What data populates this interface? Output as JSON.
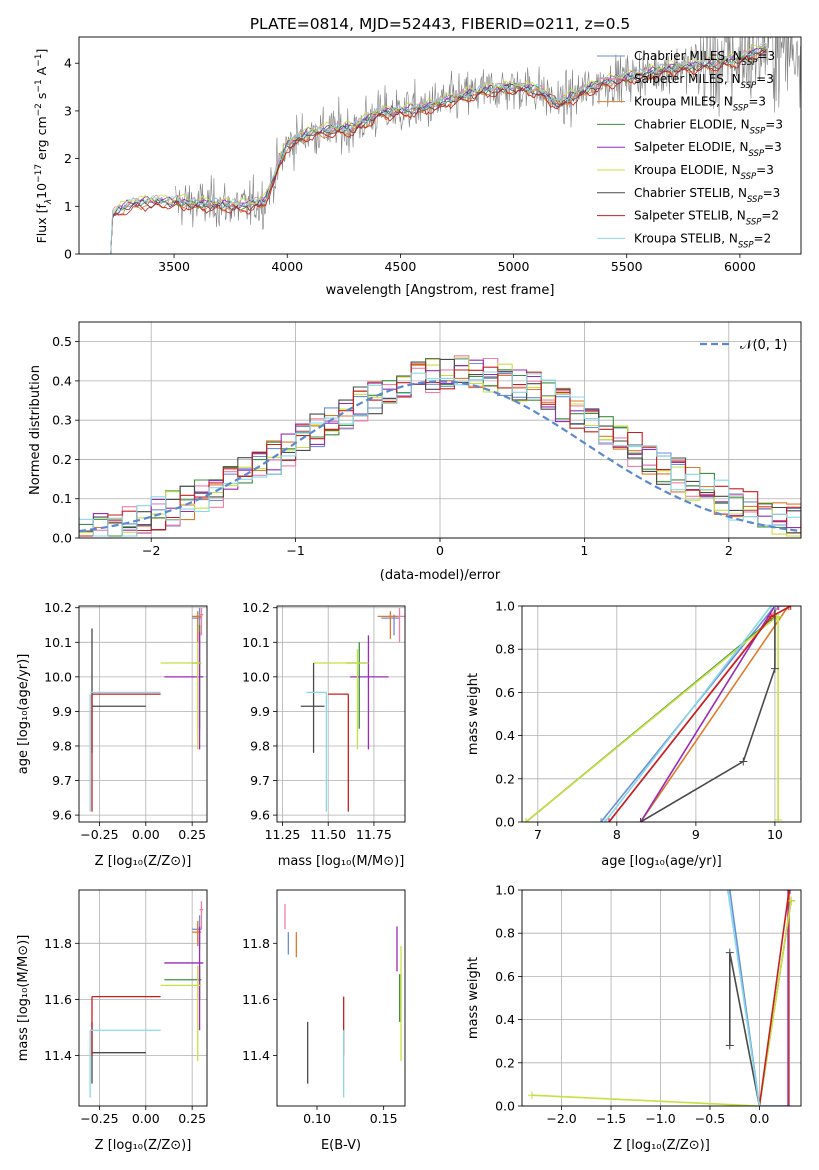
{
  "colors": {
    "Chabrier MILES": "#6a8fd8",
    "Salpeter MILES": "#f07fa8",
    "Kroupa MILES": "#e07a2a",
    "Chabrier ELODIE": "#3f8f3f",
    "Salpeter ELODIE": "#9a2ab8",
    "Kroupa ELODIE": "#c8e040",
    "Chabrier STELIB": "#4a4a4a",
    "Salpeter STELIB": "#c81e1e",
    "Kroupa STELIB": "#88d8e8",
    "normal": "#5b88d0",
    "grid": "#b0b0b0",
    "data_spectrum": "#7f7f7f"
  },
  "chart_data": [
    {
      "id": "spectrum",
      "type": "line",
      "title": "PLATE=0814, MJD=52443, FIBERID=0211, z=0.5",
      "xlabel": "wavelength [Angstrom, rest frame]",
      "ylabel": "Flux [f$_\\lambda$10$^{-17}$ erg cm$^{-2}$ s$^{-1}$ A$^{-1}$]",
      "ylabel_parts": [
        "Flux [f",
        "λ",
        "10",
        "−17",
        " erg cm",
        "−2",
        " s",
        "−1",
        " A",
        "−1",
        "]"
      ],
      "xlim": [
        3080,
        6270
      ],
      "ylim": [
        0,
        4.55
      ],
      "xticks": [
        3500,
        4000,
        4500,
        5000,
        5500,
        6000
      ],
      "yticks": [
        0,
        1,
        2,
        3,
        4
      ],
      "grid": false,
      "legend_position": "top-right",
      "legend": [
        {
          "name": "Chabrier MILES",
          "nssp": "3"
        },
        {
          "name": "Salpeter MILES",
          "nssp": "3"
        },
        {
          "name": "Kroupa MILES",
          "nssp": "3"
        },
        {
          "name": "Chabrier ELODIE",
          "nssp": "3"
        },
        {
          "name": "Salpeter ELODIE",
          "nssp": "3"
        },
        {
          "name": "Kroupa ELODIE",
          "nssp": "3"
        },
        {
          "name": "Chabrier STELIB",
          "nssp": "3"
        },
        {
          "name": "Salpeter STELIB",
          "nssp": "2"
        },
        {
          "name": "Kroupa STELIB",
          "nssp": "2"
        }
      ],
      "nssp_label": [
        "N",
        "SSP",
        "="
      ],
      "continuum": {
        "x": [
          3220,
          3300,
          3400,
          3500,
          3600,
          3700,
          3800,
          3900,
          3950,
          4000,
          4100,
          4200,
          4300,
          4400,
          4500,
          4600,
          4700,
          4800,
          4900,
          5000,
          5100,
          5200,
          5300,
          5400,
          5500,
          5600,
          5700,
          5800,
          5900,
          6000,
          6100
        ],
        "y": [
          0.8,
          1.05,
          1.1,
          1.1,
          1.05,
          1.05,
          1.0,
          1.1,
          1.7,
          2.3,
          2.55,
          2.6,
          2.65,
          2.95,
          3.0,
          3.05,
          3.2,
          3.35,
          3.45,
          3.5,
          3.45,
          3.15,
          3.4,
          3.6,
          3.7,
          3.8,
          3.9,
          3.95,
          4.0,
          4.1,
          4.3
        ]
      },
      "model_x_range": [
        3220,
        6120
      ],
      "data_x_range": [
        3505,
        6270
      ],
      "data_noise": 0.35
    },
    {
      "id": "residuals",
      "type": "step",
      "xlabel": "(data-model)/error",
      "ylabel": "Normed distribution",
      "xlim": [
        -2.5,
        2.5
      ],
      "ylim": [
        0,
        0.55
      ],
      "xticks": [
        -2,
        -1,
        0,
        1,
        2
      ],
      "yticks": [
        0,
        0.1,
        0.2,
        0.3,
        0.4,
        0.5
      ],
      "grid": true,
      "legend_position": "top-right",
      "legend": [
        "𝒩(0, 1)"
      ],
      "bin_width": 0.1,
      "series_names": [
        "Chabrier MILES",
        "Salpeter MILES",
        "Kroupa MILES",
        "Chabrier ELODIE",
        "Salpeter ELODIE",
        "Kroupa ELODIE",
        "Chabrier STELIB",
        "Salpeter STELIB",
        "Kroupa STELIB"
      ],
      "normal_curve": {
        "mean": 0,
        "sigma": 1
      }
    },
    {
      "id": "age_vs_Z",
      "type": "errorbar",
      "xlabel": "Z [log₁₀(Z/Z⊙)]",
      "ylabel": "age  [log₁₀(age/yr)]",
      "xlim": [
        -0.36,
        0.33
      ],
      "ylim": [
        9.58,
        10.205
      ],
      "xticks": [
        -0.25,
        0.0,
        0.25
      ],
      "yticks": [
        9.6,
        9.7,
        9.8,
        9.9,
        10.0,
        10.1,
        10.2
      ],
      "grid": true,
      "points": [
        {
          "series": "Chabrier MILES",
          "x": 0.29,
          "y": 10.17,
          "xlo": 0.25,
          "xhi": 0.3,
          "ylo": 10.13,
          "yhi": 10.2
        },
        {
          "series": "Salpeter MILES",
          "x": 0.3,
          "y": 10.18,
          "xlo": 0.29,
          "xhi": 0.31,
          "ylo": 10.12,
          "yhi": 10.2
        },
        {
          "series": "Kroupa MILES",
          "x": 0.28,
          "y": 10.175,
          "xlo": 0.25,
          "xhi": 0.3,
          "ylo": 10.1,
          "yhi": 10.19
        },
        {
          "series": "Chabrier ELODIE",
          "x": 0.29,
          "y": 10.04,
          "xlo": 0.25,
          "xhi": 0.3,
          "ylo": 9.85,
          "yhi": 10.15
        },
        {
          "series": "Salpeter ELODIE",
          "x": 0.29,
          "y": 10.0,
          "xlo": 0.1,
          "xhi": 0.31,
          "ylo": 9.79,
          "yhi": 10.13
        },
        {
          "series": "Kroupa ELODIE",
          "x": 0.28,
          "y": 10.04,
          "xlo": 0.08,
          "xhi": 0.3,
          "ylo": 9.79,
          "yhi": 10.1
        },
        {
          "series": "Chabrier STELIB",
          "x": -0.29,
          "y": 9.915,
          "xlo": -0.29,
          "xhi": 0.0,
          "ylo": 9.78,
          "yhi": 10.14
        },
        {
          "series": "Salpeter STELIB",
          "x": -0.29,
          "y": 9.95,
          "xlo": -0.29,
          "xhi": 0.08,
          "ylo": 9.61,
          "yhi": 9.95
        },
        {
          "series": "Kroupa STELIB",
          "x": -0.3,
          "y": 9.955,
          "xlo": -0.3,
          "xhi": 0.08,
          "ylo": 9.61,
          "yhi": 9.95
        }
      ]
    },
    {
      "id": "age_vs_mass",
      "type": "errorbar",
      "xlabel": "mass [log₁₀(M/M⊙)]",
      "xlim": [
        11.22,
        11.92
      ],
      "ylim": [
        9.58,
        10.205
      ],
      "xticks": [
        11.25,
        11.5,
        11.75
      ],
      "yticks": [
        9.6,
        9.7,
        9.8,
        9.9,
        10.0,
        10.1,
        10.2
      ],
      "grid": true,
      "points": [
        {
          "series": "Chabrier MILES",
          "x": 11.86,
          "y": 10.17,
          "xlo": 11.79,
          "xhi": 11.89,
          "ylo": 10.12,
          "yhi": 10.18
        },
        {
          "series": "Salpeter MILES",
          "x": 11.89,
          "y": 10.175,
          "xlo": 11.83,
          "xhi": 11.92,
          "ylo": 10.1,
          "yhi": 10.2
        },
        {
          "series": "Kroupa MILES",
          "x": 11.84,
          "y": 10.175,
          "xlo": 11.77,
          "xhi": 11.88,
          "ylo": 10.11,
          "yhi": 10.19
        },
        {
          "series": "Chabrier ELODIE",
          "x": 11.67,
          "y": 10.04,
          "xlo": 11.6,
          "xhi": 11.72,
          "ylo": 9.85,
          "yhi": 10.1
        },
        {
          "series": "Salpeter ELODIE",
          "x": 11.72,
          "y": 10.0,
          "xlo": 11.62,
          "xhi": 11.83,
          "ylo": 9.79,
          "yhi": 10.12
        },
        {
          "series": "Kroupa ELODIE",
          "x": 11.66,
          "y": 10.04,
          "xlo": 11.42,
          "xhi": 11.72,
          "ylo": 9.79,
          "yhi": 10.08
        },
        {
          "series": "Chabrier STELIB",
          "x": 11.42,
          "y": 9.915,
          "xlo": 11.35,
          "xhi": 11.48,
          "ylo": 9.78,
          "yhi": 10.04
        },
        {
          "series": "Salpeter STELIB",
          "x": 11.61,
          "y": 9.95,
          "xlo": 11.5,
          "xhi": 11.61,
          "ylo": 9.61,
          "yhi": 9.95
        },
        {
          "series": "Kroupa STELIB",
          "x": 11.49,
          "y": 9.955,
          "xlo": 11.38,
          "xhi": 11.49,
          "ylo": 9.61,
          "yhi": 9.955
        }
      ]
    },
    {
      "id": "weight_vs_age",
      "type": "line",
      "xlabel": "age  [log₁₀(age/yr)]",
      "ylabel": "mass weight",
      "xlim": [
        6.8,
        10.33
      ],
      "ylim": [
        0,
        1.0
      ],
      "xticks": [
        7,
        8,
        9,
        10
      ],
      "yticks": [
        0.0,
        0.2,
        0.4,
        0.6,
        0.8,
        1.0
      ],
      "grid": true,
      "series": [
        {
          "name": "Chabrier MILES",
          "x": [
            7.8,
            10.0,
            10.17
          ],
          "y": [
            0.0,
            1.0,
            1.0
          ]
        },
        {
          "name": "Salpeter MILES",
          "x": [
            7.9,
            10.05,
            10.18
          ],
          "y": [
            0.0,
            1.0,
            1.0
          ]
        },
        {
          "name": "Kroupa MILES",
          "x": [
            8.3,
            10.17
          ],
          "y": [
            0.0,
            1.0
          ]
        },
        {
          "name": "Chabrier ELODIE",
          "x": [
            6.85,
            10.0,
            10.04
          ],
          "y": [
            0.0,
            0.95,
            0.95
          ]
        },
        {
          "name": "Salpeter ELODIE",
          "x": [
            8.3,
            10.0,
            10.04
          ],
          "y": [
            0.0,
            1.0,
            1.0
          ]
        },
        {
          "name": "Kroupa ELODIE",
          "x": [
            6.85,
            10.02,
            10.04,
            10.04
          ],
          "y": [
            0.0,
            0.95,
            0.95,
            0.01
          ]
        },
        {
          "name": "Chabrier STELIB",
          "x": [
            8.3,
            9.6,
            10.0,
            10.0
          ],
          "y": [
            0.0,
            0.28,
            0.71,
            1.0
          ]
        },
        {
          "name": "Salpeter STELIB",
          "x": [
            7.9,
            9.95,
            10.2
          ],
          "y": [
            0.0,
            0.95,
            1.0
          ]
        },
        {
          "name": "Kroupa STELIB",
          "x": [
            7.85,
            9.95,
            10.0
          ],
          "y": [
            0.0,
            1.0,
            1.0
          ]
        }
      ]
    },
    {
      "id": "mass_vs_Z",
      "type": "errorbar",
      "xlabel": "Z [log₁₀(Z/Z⊙)]",
      "ylabel": "mass [log₁₀(M/M⊙)]",
      "xlim": [
        -0.36,
        0.33
      ],
      "ylim": [
        11.22,
        11.99
      ],
      "xticks": [
        -0.25,
        0.0,
        0.25
      ],
      "yticks": [
        11.4,
        11.6,
        11.8
      ],
      "grid": true,
      "points": [
        {
          "series": "Chabrier MILES",
          "x": 0.29,
          "y": 11.85,
          "xlo": 0.25,
          "xhi": 0.3,
          "ylo": 11.78,
          "yhi": 11.9
        },
        {
          "series": "Salpeter MILES",
          "x": 0.3,
          "y": 11.92,
          "xlo": 0.29,
          "xhi": 0.31,
          "ylo": 11.85,
          "yhi": 11.95
        },
        {
          "series": "Kroupa MILES",
          "x": 0.28,
          "y": 11.84,
          "xlo": 0.25,
          "xhi": 0.3,
          "ylo": 11.79,
          "yhi": 11.88
        },
        {
          "series": "Chabrier ELODIE",
          "x": 0.29,
          "y": 11.67,
          "xlo": 0.1,
          "xhi": 0.3,
          "ylo": 11.6,
          "yhi": 11.72
        },
        {
          "series": "Salpeter ELODIE",
          "x": 0.29,
          "y": 11.73,
          "xlo": 0.1,
          "xhi": 0.31,
          "ylo": 11.49,
          "yhi": 11.86
        },
        {
          "series": "Kroupa ELODIE",
          "x": 0.28,
          "y": 11.65,
          "xlo": 0.08,
          "xhi": 0.3,
          "ylo": 11.38,
          "yhi": 11.72
        },
        {
          "series": "Chabrier STELIB",
          "x": -0.29,
          "y": 11.41,
          "xlo": -0.29,
          "xhi": 0.0,
          "ylo": 11.3,
          "yhi": 11.52
        },
        {
          "series": "Salpeter STELIB",
          "x": -0.29,
          "y": 11.61,
          "xlo": -0.29,
          "xhi": 0.08,
          "ylo": 11.4,
          "yhi": 11.61
        },
        {
          "series": "Kroupa STELIB",
          "x": -0.3,
          "y": 11.49,
          "xlo": -0.3,
          "xhi": 0.08,
          "ylo": 11.25,
          "yhi": 11.49
        }
      ]
    },
    {
      "id": "mass_vs_ebv",
      "type": "errorbar",
      "xlabel": "E(B-V)",
      "xlim": [
        0.07,
        0.166
      ],
      "ylim": [
        11.22,
        11.99
      ],
      "xticks": [
        0.1,
        0.15
      ],
      "yticks": [
        11.4,
        11.6,
        11.8
      ],
      "grid": false,
      "points": [
        {
          "series": "Chabrier MILES",
          "x": 0.0785,
          "y": 11.8,
          "ylo": 11.76,
          "yhi": 11.84
        },
        {
          "series": "Salpeter MILES",
          "x": 0.076,
          "y": 11.9,
          "ylo": 11.85,
          "yhi": 11.94
        },
        {
          "series": "Kroupa MILES",
          "x": 0.0845,
          "y": 11.8,
          "ylo": 11.75,
          "yhi": 11.84
        },
        {
          "series": "Chabrier ELODIE",
          "x": 0.162,
          "y": 11.62,
          "ylo": 11.52,
          "yhi": 11.69
        },
        {
          "series": "Salpeter ELODIE",
          "x": 0.16,
          "y": 11.8,
          "ylo": 11.7,
          "yhi": 11.86
        },
        {
          "series": "Kroupa ELODIE",
          "x": 0.163,
          "y": 11.55,
          "ylo": 11.38,
          "yhi": 11.79
        },
        {
          "series": "Chabrier STELIB",
          "x": 0.093,
          "y": 11.4,
          "ylo": 11.3,
          "yhi": 11.52
        },
        {
          "series": "Salpeter STELIB",
          "x": 0.12,
          "y": 11.55,
          "ylo": 11.4,
          "yhi": 11.61
        },
        {
          "series": "Kroupa STELIB",
          "x": 0.12,
          "y": 11.35,
          "ylo": 11.25,
          "yhi": 11.49
        }
      ]
    },
    {
      "id": "weight_vs_Z",
      "type": "line",
      "xlabel": "Z [log₁₀(Z/Z⊙)]",
      "ylabel": "mass weight",
      "xlim": [
        -2.4,
        0.42
      ],
      "ylim": [
        0,
        1.0
      ],
      "xticks": [
        -2.0,
        -1.5,
        -1.0,
        -0.5,
        0.0
      ],
      "yticks": [
        0.0,
        0.2,
        0.4,
        0.6,
        0.8,
        1.0
      ],
      "grid": true,
      "series": [
        {
          "name": "Chabrier MILES",
          "x": [
            -0.3,
            0.0,
            0.3,
            0.3
          ],
          "y": [
            1.0,
            0.0,
            0.0,
            1.0
          ]
        },
        {
          "name": "Salpeter MILES",
          "x": [
            0.3,
            0.3
          ],
          "y": [
            0.0,
            1.0
          ]
        },
        {
          "name": "Kroupa MILES",
          "x": [
            0.3,
            0.3
          ],
          "y": [
            0.0,
            1.0
          ]
        },
        {
          "name": "Chabrier ELODIE",
          "x": [
            0.0,
            0.32
          ],
          "y": [
            0.0,
            0.95
          ]
        },
        {
          "name": "Salpeter ELODIE",
          "x": [
            0.29,
            0.29,
            0.31
          ],
          "y": [
            0.0,
            1.0,
            1.0
          ]
        },
        {
          "name": "Kroupa ELODIE",
          "x": [
            -2.3,
            0.0,
            0.32,
            0.32
          ],
          "y": [
            0.05,
            0.0,
            0.95,
            0.95
          ]
        },
        {
          "name": "Chabrier STELIB",
          "x": [
            -0.3,
            -0.3,
            0.0
          ],
          "y": [
            0.28,
            0.71,
            0.0
          ]
        },
        {
          "name": "Salpeter STELIB",
          "x": [
            0.0,
            0.3
          ],
          "y": [
            0.0,
            1.0
          ]
        },
        {
          "name": "Kroupa STELIB",
          "x": [
            -0.32,
            0.0
          ],
          "y": [
            1.0,
            0.0
          ]
        }
      ]
    }
  ]
}
